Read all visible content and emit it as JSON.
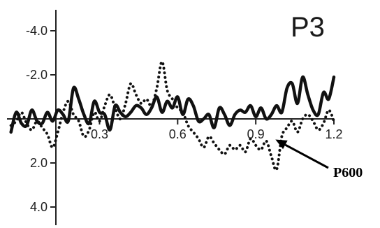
{
  "chart_data": {
    "type": "line",
    "title": "P3",
    "xlabel": "",
    "ylabel": "",
    "xlim": [
      -0.05,
      1.2
    ],
    "ylim": [
      -5.2,
      5.2
    ],
    "y_inverted": true,
    "x_ticks": [
      0.3,
      0.6,
      0.9,
      1.2
    ],
    "x_tick_labels": [
      "0.3",
      "0.6",
      "0.9",
      "1.2"
    ],
    "y_ticks": [
      -4.0,
      -2.0,
      2.0,
      4.0
    ],
    "y_tick_labels": [
      "-4.0",
      "-2.0",
      "2.0",
      "4.0"
    ],
    "grid": false,
    "annotation": {
      "text": "P600",
      "x": 0.97,
      "y": 1.0
    },
    "series": [
      {
        "style": "solid",
        "color": "#111111",
        "x": [
          -0.04,
          -0.02,
          0.0,
          0.02,
          0.04,
          0.06,
          0.08,
          0.1,
          0.12,
          0.14,
          0.16,
          0.18,
          0.2,
          0.22,
          0.24,
          0.26,
          0.28,
          0.3,
          0.32,
          0.34,
          0.36,
          0.38,
          0.4,
          0.42,
          0.44,
          0.46,
          0.48,
          0.5,
          0.52,
          0.54,
          0.56,
          0.58,
          0.6,
          0.62,
          0.64,
          0.66,
          0.68,
          0.7,
          0.72,
          0.74,
          0.76,
          0.78,
          0.8,
          0.82,
          0.84,
          0.86,
          0.88,
          0.9,
          0.92,
          0.94,
          0.96,
          0.98,
          1.0,
          1.02,
          1.04,
          1.06,
          1.08,
          1.1,
          1.12,
          1.14,
          1.16,
          1.18,
          1.2
        ],
        "y": [
          0.6,
          -0.3,
          0.2,
          0.3,
          -0.4,
          0.1,
          0.2,
          -0.3,
          0.1,
          -0.4,
          -0.2,
          0.1,
          -1.4,
          -0.9,
          -0.2,
          0.2,
          -0.8,
          -0.3,
          -0.2,
          0.5,
          -0.6,
          -0.3,
          -0.1,
          -0.3,
          -0.6,
          -0.5,
          -0.2,
          -0.5,
          -1.0,
          -0.3,
          -0.8,
          -0.5,
          -1.0,
          -0.2,
          -0.9,
          -0.6,
          0.1,
          0.0,
          -0.2,
          0.4,
          -0.5,
          -0.2,
          0.3,
          -0.2,
          -0.4,
          -0.3,
          -0.6,
          -0.1,
          -0.5,
          0.0,
          -0.2,
          -0.6,
          -0.3,
          -1.4,
          -1.6,
          -0.7,
          -1.9,
          -1.1,
          -0.4,
          -0.2,
          -1.2,
          -0.9,
          -1.9
        ]
      },
      {
        "style": "dotted",
        "color": "#111111",
        "x": [
          -0.04,
          -0.02,
          0.0,
          0.02,
          0.04,
          0.06,
          0.08,
          0.1,
          0.12,
          0.14,
          0.16,
          0.18,
          0.2,
          0.22,
          0.24,
          0.26,
          0.28,
          0.3,
          0.32,
          0.34,
          0.36,
          0.38,
          0.4,
          0.42,
          0.44,
          0.46,
          0.48,
          0.5,
          0.52,
          0.54,
          0.56,
          0.58,
          0.6,
          0.62,
          0.64,
          0.66,
          0.68,
          0.7,
          0.72,
          0.74,
          0.76,
          0.78,
          0.8,
          0.82,
          0.84,
          0.86,
          0.88,
          0.9,
          0.92,
          0.94,
          0.96,
          0.98,
          1.0,
          1.02,
          1.04,
          1.06,
          1.08,
          1.1,
          1.12,
          1.14,
          1.16,
          1.18,
          1.2
        ],
        "y": [
          0.3,
          0.1,
          -0.3,
          0.2,
          0.5,
          0.1,
          0.4,
          0.7,
          1.3,
          0.6,
          -0.3,
          -0.8,
          -0.2,
          0.1,
          0.8,
          0.5,
          -0.3,
          0.1,
          -0.6,
          -1.1,
          -0.5,
          0.0,
          -0.7,
          -1.6,
          -1.1,
          -0.7,
          -0.9,
          -0.6,
          -1.4,
          -2.6,
          -1.3,
          -0.9,
          -0.5,
          -0.3,
          0.3,
          0.6,
          0.9,
          1.3,
          0.8,
          1.1,
          1.4,
          1.6,
          1.2,
          1.4,
          1.2,
          1.5,
          0.9,
          1.2,
          1.4,
          1.0,
          1.7,
          2.3,
          0.8,
          0.4,
          0.1,
          0.6,
          0.0,
          -0.2,
          0.1,
          0.5,
          0.2,
          -0.4,
          0.1
        ]
      }
    ]
  }
}
